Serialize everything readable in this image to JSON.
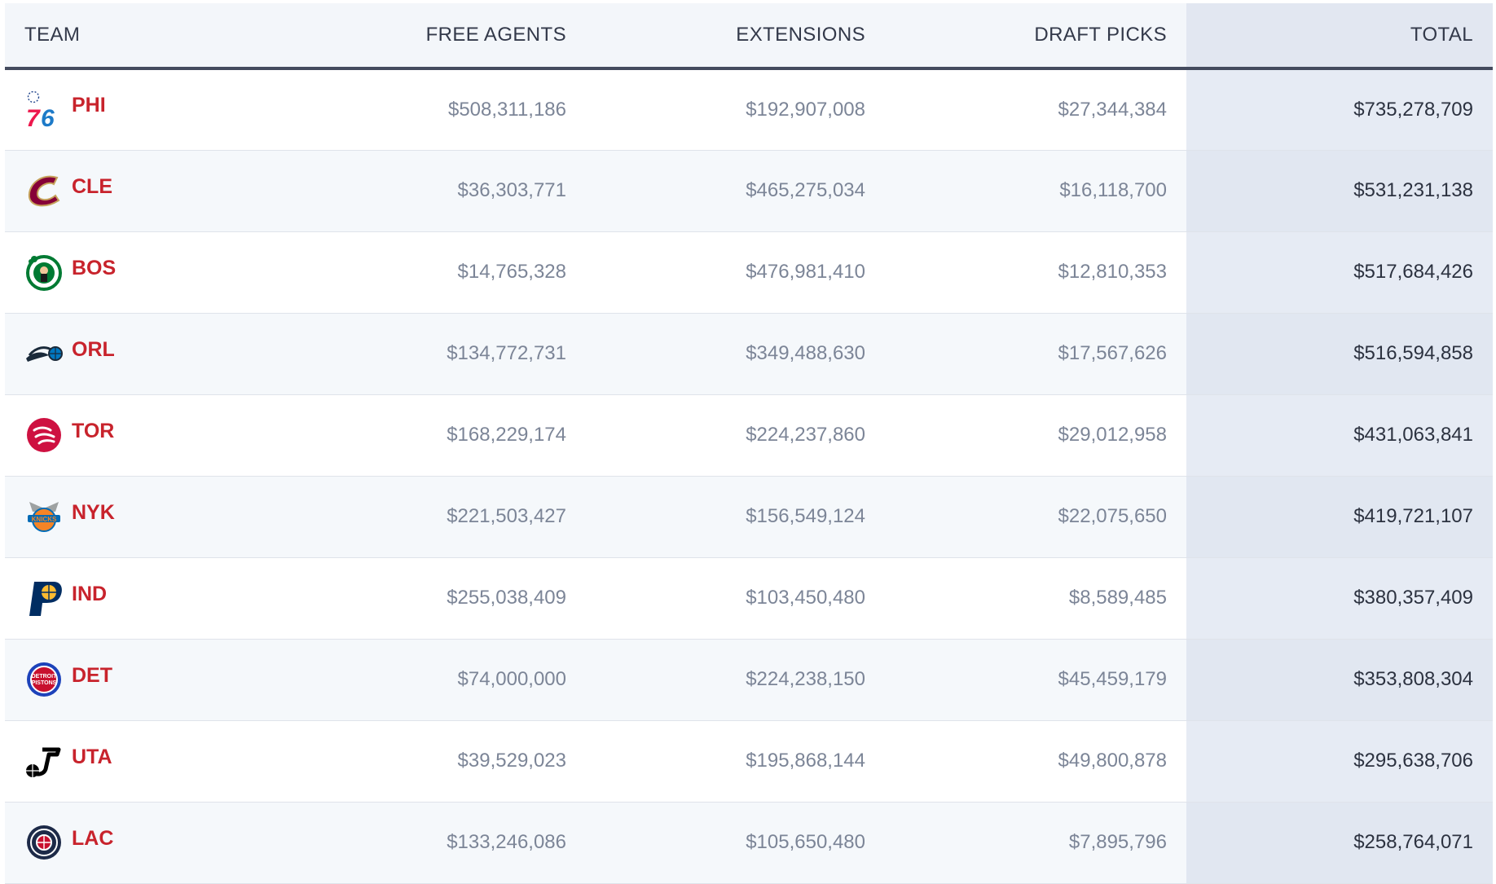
{
  "headers": {
    "team": "TEAM",
    "free_agents": "FREE AGENTS",
    "extensions": "EXTENSIONS",
    "draft_picks": "DRAFT PICKS",
    "total": "TOTAL"
  },
  "colors": {
    "team_abbr": "#c8232c",
    "header_bg": "#f3f6fa",
    "total_column_bg": "#e2e7f1",
    "header_rule": "#444b5e",
    "amount_text": "#7c8597",
    "total_text": "#2c3240"
  },
  "rows": [
    {
      "abbr": "PHI",
      "logo": "76ers-logo-icon",
      "free_agents": "$508,311,186",
      "extensions": "$192,907,008",
      "draft_picks": "$27,344,384",
      "total": "$735,278,709"
    },
    {
      "abbr": "CLE",
      "logo": "cavaliers-logo-icon",
      "free_agents": "$36,303,771",
      "extensions": "$465,275,034",
      "draft_picks": "$16,118,700",
      "total": "$531,231,138"
    },
    {
      "abbr": "BOS",
      "logo": "celtics-logo-icon",
      "free_agents": "$14,765,328",
      "extensions": "$476,981,410",
      "draft_picks": "$12,810,353",
      "total": "$517,684,426"
    },
    {
      "abbr": "ORL",
      "logo": "magic-logo-icon",
      "free_agents": "$134,772,731",
      "extensions": "$349,488,630",
      "draft_picks": "$17,567,626",
      "total": "$516,594,858"
    },
    {
      "abbr": "TOR",
      "logo": "raptors-logo-icon",
      "free_agents": "$168,229,174",
      "extensions": "$224,237,860",
      "draft_picks": "$29,012,958",
      "total": "$431,063,841"
    },
    {
      "abbr": "NYK",
      "logo": "knicks-logo-icon",
      "free_agents": "$221,503,427",
      "extensions": "$156,549,124",
      "draft_picks": "$22,075,650",
      "total": "$419,721,107"
    },
    {
      "abbr": "IND",
      "logo": "pacers-logo-icon",
      "free_agents": "$255,038,409",
      "extensions": "$103,450,480",
      "draft_picks": "$8,589,485",
      "total": "$380,357,409"
    },
    {
      "abbr": "DET",
      "logo": "pistons-logo-icon",
      "free_agents": "$74,000,000",
      "extensions": "$224,238,150",
      "draft_picks": "$45,459,179",
      "total": "$353,808,304"
    },
    {
      "abbr": "UTA",
      "logo": "jazz-logo-icon",
      "free_agents": "$39,529,023",
      "extensions": "$195,868,144",
      "draft_picks": "$49,800,878",
      "total": "$295,638,706"
    },
    {
      "abbr": "LAC",
      "logo": "clippers-logo-icon",
      "free_agents": "$133,246,086",
      "extensions": "$105,650,480",
      "draft_picks": "$7,895,796",
      "total": "$258,764,071"
    }
  ]
}
